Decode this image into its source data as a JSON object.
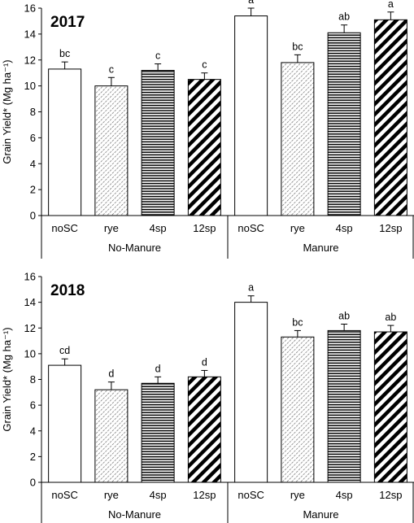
{
  "chart_data": [
    {
      "type": "bar",
      "title": "2017",
      "ylabel": "Grain Yield* (Mg ha⁻¹)",
      "ylim": [
        0,
        16
      ],
      "yticks": [
        0,
        2,
        4,
        6,
        8,
        10,
        12,
        14,
        16
      ],
      "groups": [
        "No-Manure",
        "Manure"
      ],
      "categories": [
        "noSC",
        "rye",
        "4sp",
        "12sp",
        "noSC",
        "rye",
        "4sp",
        "12sp"
      ],
      "values": [
        11.3,
        10.0,
        11.2,
        10.5,
        15.4,
        11.8,
        14.1,
        15.1
      ],
      "errors": [
        0.55,
        0.65,
        0.5,
        0.5,
        0.6,
        0.6,
        0.6,
        0.6
      ],
      "letters": [
        "bc",
        "c",
        "c",
        "c",
        "a",
        "bc",
        "ab",
        "a"
      ],
      "patterns": [
        "none",
        "dots",
        "horizontal",
        "diagonal",
        "none",
        "dots",
        "horizontal",
        "diagonal"
      ]
    },
    {
      "type": "bar",
      "title": "2018",
      "ylabel": "Grain Yield* (Mg ha⁻¹)",
      "ylim": [
        0,
        16
      ],
      "yticks": [
        0,
        2,
        4,
        6,
        8,
        10,
        12,
        14,
        16
      ],
      "groups": [
        "No-Manure",
        "Manure"
      ],
      "categories": [
        "noSC",
        "rye",
        "4sp",
        "12sp",
        "noSC",
        "rye",
        "4sp",
        "12sp"
      ],
      "values": [
        9.1,
        7.2,
        7.7,
        8.2,
        14.0,
        11.3,
        11.8,
        11.7
      ],
      "errors": [
        0.5,
        0.6,
        0.5,
        0.5,
        0.5,
        0.5,
        0.5,
        0.5
      ],
      "letters": [
        "cd",
        "d",
        "d",
        "d",
        "a",
        "bc",
        "ab",
        "ab"
      ],
      "patterns": [
        "none",
        "dots",
        "horizontal",
        "diagonal",
        "none",
        "dots",
        "horizontal",
        "diagonal"
      ]
    }
  ]
}
